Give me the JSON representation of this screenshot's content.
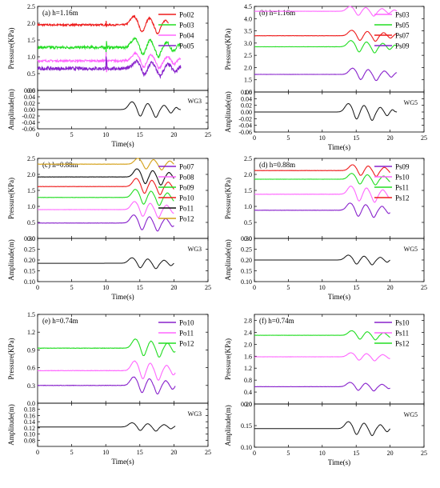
{
  "figure": {
    "time_label": "Time(s)",
    "pressure_label": "Pressure(KPa)",
    "amplitude_label": "Amplitude(m)"
  },
  "chart_data": [
    {
      "id": "a",
      "type": "line",
      "title": "(a) h=1.16m",
      "xlabel": "Time(s)",
      "ylabel": "Pressure(KPa)",
      "xlim": [
        0,
        25
      ],
      "xticks": [
        0,
        5,
        10,
        15,
        20,
        25
      ],
      "ylim": [
        0.0,
        2.5
      ],
      "yticks": [
        0.0,
        0.5,
        1.0,
        1.5,
        2.0,
        2.5
      ],
      "legend_position": "top-right",
      "series": [
        {
          "name": "Po02",
          "color": "#ee1c1c",
          "base": 1.95,
          "amp": 0.28,
          "noise": 0.025,
          "t_start": 0,
          "t_end": 19.2
        },
        {
          "name": "Po03",
          "color": "#22dd22",
          "base": 1.28,
          "amp": 0.3,
          "noise": 0.04,
          "t_start": 0,
          "t_end": 21
        },
        {
          "name": "Po04",
          "color": "#ff66ff",
          "base": 0.88,
          "amp": 0.25,
          "noise": 0.03,
          "t_start": 0,
          "t_end": 21
        },
        {
          "name": "Po05",
          "color": "#8822cc",
          "base": 0.65,
          "amp": 0.25,
          "noise": 0.05,
          "t_start": 0,
          "t_end": 21
        }
      ],
      "wave": {
        "name": "WG3",
        "xlabel": "Time(s)",
        "ylabel": "Amplitude(m)",
        "ylim": [
          -0.06,
          0.06
        ],
        "yticks": [
          -0.06,
          -0.04,
          -0.02,
          0.0,
          0.02,
          0.04,
          0.06
        ],
        "color": "#111111",
        "base": 0.0,
        "amp": 0.027,
        "t_start": 0,
        "t_end": 21
      }
    },
    {
      "id": "b",
      "type": "line",
      "title": "(b) h=1.16m",
      "xlabel": "Time(s)",
      "ylabel": "Pressure(KPa)",
      "xlim": [
        0,
        25
      ],
      "xticks": [
        0,
        5,
        10,
        15,
        20,
        25
      ],
      "ylim": [
        1.0,
        4.5
      ],
      "yticks": [
        1.0,
        1.5,
        2.0,
        2.5,
        3.0,
        3.5,
        4.0,
        4.5
      ],
      "legend_position": "top-right",
      "series": [
        {
          "name": "Ps03",
          "color": "#ff66ff",
          "base": 4.3,
          "amp": 0.22,
          "noise": 0.004,
          "t_start": 0,
          "t_end": 21
        },
        {
          "name": "Ps05",
          "color": "#22dd22",
          "base": 2.85,
          "amp": 0.28,
          "noise": 0.004,
          "t_start": 0,
          "t_end": 21
        },
        {
          "name": "Ps07",
          "color": "#ee1c1c",
          "base": 3.3,
          "amp": 0.25,
          "noise": 0.004,
          "t_start": 0,
          "t_end": 21
        },
        {
          "name": "Ps09",
          "color": "#8822cc",
          "base": 1.72,
          "amp": 0.28,
          "noise": 0.004,
          "t_start": 0,
          "t_end": 21
        }
      ],
      "wave": {
        "name": "WG5",
        "xlabel": "Time(s)",
        "ylabel": "Amplitude(m)",
        "ylim": [
          -0.06,
          0.06
        ],
        "yticks": [
          -0.06,
          -0.04,
          -0.02,
          0.0,
          0.02,
          0.04,
          0.06
        ],
        "color": "#111111",
        "base": 0.0,
        "amp": 0.028,
        "t_start": 0,
        "t_end": 21
      }
    },
    {
      "id": "c",
      "type": "line",
      "title": "(c) h=0.88m",
      "xlabel": "Time(s)",
      "ylabel": "Pressure(KPa)",
      "xlim": [
        0,
        25
      ],
      "xticks": [
        0,
        5,
        10,
        15,
        20,
        25
      ],
      "ylim": [
        0.0,
        2.5
      ],
      "yticks": [
        0.0,
        0.5,
        1.0,
        1.5,
        2.0,
        2.5
      ],
      "legend_position": "top-right",
      "series": [
        {
          "name": "Po07",
          "color": "#8822cc",
          "base": 0.48,
          "amp": 0.28,
          "noise": 0.003,
          "t_start": 0,
          "t_end": 20
        },
        {
          "name": "Po08",
          "color": "#ff66ff",
          "base": 0.9,
          "amp": 0.28,
          "noise": 0.003,
          "t_start": 0,
          "t_end": 20
        },
        {
          "name": "Po09",
          "color": "#22dd22",
          "base": 1.28,
          "amp": 0.28,
          "noise": 0.003,
          "t_start": 0,
          "t_end": 20
        },
        {
          "name": "Po10",
          "color": "#ee1c1c",
          "base": 1.62,
          "amp": 0.28,
          "noise": 0.003,
          "t_start": 0,
          "t_end": 20
        },
        {
          "name": "Po11",
          "color": "#111111",
          "base": 1.92,
          "amp": 0.28,
          "noise": 0.003,
          "t_start": 0,
          "t_end": 20
        },
        {
          "name": "Po12",
          "color": "#d4a017",
          "base": 2.32,
          "amp": 0.2,
          "noise": 0.003,
          "t_start": 0,
          "t_end": 20
        }
      ],
      "wave": {
        "name": "WG3",
        "xlabel": "Time(s)",
        "ylabel": "Amplitude(m)",
        "ylim": [
          0.1,
          0.3
        ],
        "yticks": [
          0.1,
          0.15,
          0.2,
          0.25,
          0.3
        ],
        "color": "#111111",
        "base": 0.185,
        "amp": 0.028,
        "t_start": 0,
        "t_end": 20
      }
    },
    {
      "id": "d",
      "type": "line",
      "title": "(d) h=0.88m",
      "xlabel": "Time(s)",
      "ylabel": "Pressure(KPa)",
      "xlim": [
        0,
        25
      ],
      "xticks": [
        0,
        5,
        10,
        15,
        20,
        25
      ],
      "ylim": [
        0.0,
        2.5
      ],
      "yticks": [
        0.0,
        0.5,
        1.0,
        1.5,
        2.0,
        2.5
      ],
      "legend_position": "top-right",
      "series": [
        {
          "name": "Ps09",
          "color": "#8822cc",
          "base": 0.88,
          "amp": 0.25,
          "noise": 0.003,
          "t_start": 0,
          "t_end": 20
        },
        {
          "name": "Ps10",
          "color": "#ff66ff",
          "base": 1.38,
          "amp": 0.28,
          "noise": 0.003,
          "t_start": 0,
          "t_end": 20
        },
        {
          "name": "Ps11",
          "color": "#22dd22",
          "base": 1.85,
          "amp": 0.2,
          "noise": 0.003,
          "t_start": 0,
          "t_end": 20
        },
        {
          "name": "Ps12",
          "color": "#ee1c1c",
          "base": 2.12,
          "amp": 0.2,
          "noise": 0.003,
          "t_start": 0,
          "t_end": 20
        }
      ],
      "wave": {
        "name": "WG5",
        "xlabel": "Time(s)",
        "ylabel": "Amplitude(m)",
        "ylim": [
          0.1,
          0.3
        ],
        "yticks": [
          0.1,
          0.15,
          0.2,
          0.25,
          0.3
        ],
        "color": "#111111",
        "base": 0.2,
        "amp": 0.025,
        "t_start": 0,
        "t_end": 20
      }
    },
    {
      "id": "e",
      "type": "line",
      "title": "(e) h=0.74m",
      "xlabel": "Time(s)",
      "ylabel": "Pressure(KPa)",
      "xlim": [
        0,
        25
      ],
      "xticks": [
        0,
        5,
        10,
        15,
        20,
        25
      ],
      "ylim": [
        0.0,
        1.5
      ],
      "yticks": [
        0.0,
        0.3,
        0.6,
        0.9,
        1.2,
        1.5
      ],
      "legend_position": "top-right",
      "series": [
        {
          "name": "Po10",
          "color": "#8822cc",
          "base": 0.3,
          "amp": 0.16,
          "noise": 0.003,
          "t_start": 0,
          "t_end": 20.2
        },
        {
          "name": "Po11",
          "color": "#ff66ff",
          "base": 0.55,
          "amp": 0.18,
          "noise": 0.003,
          "t_start": 0,
          "t_end": 20.2
        },
        {
          "name": "Po12",
          "color": "#22dd22",
          "base": 0.93,
          "amp": 0.17,
          "noise": 0.003,
          "t_start": 0,
          "t_end": 20.2
        }
      ],
      "wave": {
        "name": "WG3",
        "xlabel": "Time(s)",
        "ylabel": "Amplitude(m)",
        "ylim": [
          0.06,
          0.2
        ],
        "yticks": [
          0.08,
          0.1,
          0.12,
          0.14,
          0.16,
          0.18
        ],
        "color": "#111111",
        "base": 0.123,
        "amp": 0.015,
        "t_start": 0,
        "t_end": 20.2
      }
    },
    {
      "id": "f",
      "type": "line",
      "title": "(f) h=0.74m",
      "xlabel": "Time(s)",
      "ylabel": "Pressure(KPa)",
      "xlim": [
        0,
        25
      ],
      "xticks": [
        0,
        5,
        10,
        15,
        20,
        25
      ],
      "ylim": [
        0.0,
        3.0
      ],
      "yticks": [
        0.0,
        0.4,
        0.8,
        1.2,
        1.6,
        2.0,
        2.4,
        2.8
      ],
      "legend_position": "top-right",
      "series": [
        {
          "name": "Ps10",
          "color": "#8822cc",
          "base": 0.58,
          "amp": 0.16,
          "noise": 0.003,
          "t_start": 0,
          "t_end": 20
        },
        {
          "name": "Ps11",
          "color": "#ff66ff",
          "base": 1.58,
          "amp": 0.15,
          "noise": 0.003,
          "t_start": 0,
          "t_end": 20
        },
        {
          "name": "Ps12",
          "color": "#22dd22",
          "base": 2.3,
          "amp": 0.17,
          "noise": 0.003,
          "t_start": 0,
          "t_end": 20
        }
      ],
      "wave": {
        "name": "WG5",
        "xlabel": "Time(s)",
        "ylabel": "Amplitude(m)",
        "ylim": [
          0.1,
          0.2
        ],
        "yticks": [
          0.1,
          0.15,
          0.2
        ],
        "color": "#111111",
        "base": 0.143,
        "amp": 0.018,
        "t_start": 0,
        "t_end": 20
      }
    }
  ]
}
